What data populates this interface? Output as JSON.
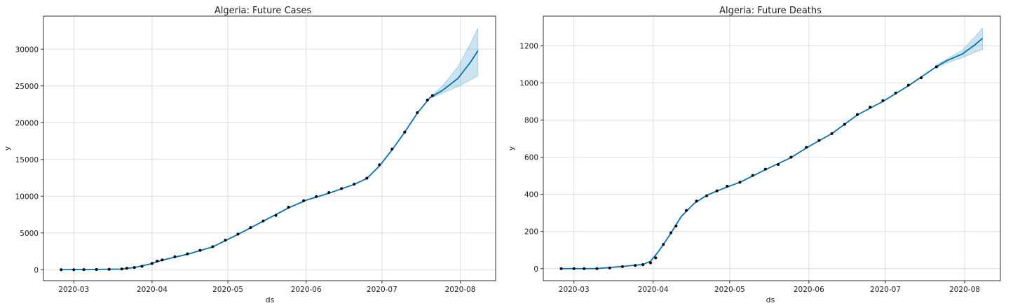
{
  "chart_data": [
    {
      "type": "line",
      "title": "Algeria: Future Cases",
      "xlabel": "ds",
      "ylabel": "y",
      "x_axis_type": "date",
      "xlim": [
        "2020-02-18",
        "2020-08-15"
      ],
      "ylim": [
        -1500,
        34500
      ],
      "x_ticks": [
        "2020-03-01",
        "2020-04-01",
        "2020-05-01",
        "2020-06-01",
        "2020-07-01",
        "2020-08-01"
      ],
      "x_tick_labels": [
        "2020-03",
        "2020-04",
        "2020-05",
        "2020-06",
        "2020-07",
        "2020-08"
      ],
      "y_ticks": [
        0,
        5000,
        10000,
        15000,
        20000,
        25000,
        30000
      ],
      "y_tick_labels": [
        "0",
        "5000",
        "10000",
        "15000",
        "20000",
        "25000",
        "30000"
      ],
      "grid": true,
      "colors": {
        "forecast": "#0072B2",
        "observed": "#000000",
        "interval": "#0072B2"
      },
      "series": [
        {
          "role": "observed",
          "style": "scatter",
          "points": [
            [
              "2020-02-25",
              1
            ],
            [
              "2020-03-01",
              1
            ],
            [
              "2020-03-05",
              17
            ],
            [
              "2020-03-10",
              20
            ],
            [
              "2020-03-15",
              48
            ],
            [
              "2020-03-20",
              90
            ],
            [
              "2020-03-22",
              201
            ],
            [
              "2020-03-25",
              302
            ],
            [
              "2020-03-28",
              454
            ],
            [
              "2020-04-01",
              847
            ],
            [
              "2020-04-03",
              1171
            ],
            [
              "2020-04-05",
              1320
            ],
            [
              "2020-04-10",
              1761
            ],
            [
              "2020-04-15",
              2160
            ],
            [
              "2020-04-20",
              2629
            ],
            [
              "2020-04-25",
              3127
            ],
            [
              "2020-04-30",
              4006
            ],
            [
              "2020-05-05",
              4838
            ],
            [
              "2020-05-10",
              5723
            ],
            [
              "2020-05-15",
              6629
            ],
            [
              "2020-05-20",
              7377
            ],
            [
              "2020-05-25",
              8503
            ],
            [
              "2020-05-31",
              9394
            ],
            [
              "2020-06-05",
              9935
            ],
            [
              "2020-06-10",
              10484
            ],
            [
              "2020-06-15",
              11031
            ],
            [
              "2020-06-20",
              11631
            ],
            [
              "2020-06-25",
              12445
            ],
            [
              "2020-06-30",
              14272
            ],
            [
              "2020-07-05",
              16404
            ],
            [
              "2020-07-10",
              18712
            ],
            [
              "2020-07-15",
              21355
            ],
            [
              "2020-07-19",
              23084
            ],
            [
              "2020-07-21",
              23691
            ]
          ]
        },
        {
          "role": "forecast",
          "style": "line",
          "points": [
            [
              "2020-02-25",
              0
            ],
            [
              "2020-03-20",
              80
            ],
            [
              "2020-03-25",
              300
            ],
            [
              "2020-03-31",
              750
            ],
            [
              "2020-04-05",
              1300
            ],
            [
              "2020-04-15",
              2100
            ],
            [
              "2020-04-25",
              3100
            ],
            [
              "2020-05-05",
              4800
            ],
            [
              "2020-05-15",
              6600
            ],
            [
              "2020-05-25",
              8400
            ],
            [
              "2020-06-01",
              9450
            ],
            [
              "2020-06-10",
              10400
            ],
            [
              "2020-06-20",
              11600
            ],
            [
              "2020-06-25",
              12400
            ],
            [
              "2020-06-30",
              14100
            ],
            [
              "2020-07-05",
              16300
            ],
            [
              "2020-07-10",
              18700
            ],
            [
              "2020-07-15",
              21300
            ],
            [
              "2020-07-20",
              23400
            ],
            [
              "2020-07-25",
              24400
            ],
            [
              "2020-07-31",
              26000
            ],
            [
              "2020-08-05",
              28200
            ],
            [
              "2020-08-08",
              29800
            ]
          ]
        },
        {
          "role": "interval",
          "style": "band",
          "points": [
            [
              "2020-07-20",
              23300,
              23500
            ],
            [
              "2020-07-25",
              24000,
              25000
            ],
            [
              "2020-07-31",
              24900,
              27600
            ],
            [
              "2020-08-05",
              25800,
              30700
            ],
            [
              "2020-08-08",
              26400,
              32900
            ]
          ]
        }
      ]
    },
    {
      "type": "line",
      "title": "Algeria: Future Deaths",
      "xlabel": "ds",
      "ylabel": "y",
      "x_axis_type": "date",
      "xlim": [
        "2020-02-18",
        "2020-08-15"
      ],
      "ylim": [
        -65,
        1360
      ],
      "x_ticks": [
        "2020-03-01",
        "2020-04-01",
        "2020-05-01",
        "2020-06-01",
        "2020-07-01",
        "2020-08-01"
      ],
      "x_tick_labels": [
        "2020-03",
        "2020-04",
        "2020-05",
        "2020-06",
        "2020-07",
        "2020-08"
      ],
      "y_ticks": [
        0,
        200,
        400,
        600,
        800,
        1000,
        1200
      ],
      "y_tick_labels": [
        "0",
        "200",
        "400",
        "600",
        "800",
        "1000",
        "1200"
      ],
      "grid": true,
      "colors": {
        "forecast": "#0072B2",
        "observed": "#000000",
        "interval": "#0072B2"
      },
      "series": [
        {
          "role": "observed",
          "style": "scatter",
          "points": [
            [
              "2020-02-25",
              0
            ],
            [
              "2020-03-01",
              0
            ],
            [
              "2020-03-05",
              0
            ],
            [
              "2020-03-10",
              0
            ],
            [
              "2020-03-15",
              4
            ],
            [
              "2020-03-20",
              11
            ],
            [
              "2020-03-25",
              17
            ],
            [
              "2020-03-28",
              21
            ],
            [
              "2020-03-31",
              31
            ],
            [
              "2020-04-02",
              58
            ],
            [
              "2020-04-05",
              130
            ],
            [
              "2020-04-08",
              193
            ],
            [
              "2020-04-10",
              230
            ],
            [
              "2020-04-14",
              313
            ],
            [
              "2020-04-18",
              364
            ],
            [
              "2020-04-22",
              392
            ],
            [
              "2020-04-26",
              419
            ],
            [
              "2020-04-30",
              444
            ],
            [
              "2020-05-05",
              465
            ],
            [
              "2020-05-10",
              502
            ],
            [
              "2020-05-15",
              536
            ],
            [
              "2020-05-20",
              561
            ],
            [
              "2020-05-25",
              600
            ],
            [
              "2020-05-31",
              653
            ],
            [
              "2020-06-05",
              690
            ],
            [
              "2020-06-10",
              727
            ],
            [
              "2020-06-15",
              777
            ],
            [
              "2020-06-20",
              830
            ],
            [
              "2020-06-25",
              870
            ],
            [
              "2020-06-30",
              905
            ],
            [
              "2020-07-05",
              946
            ],
            [
              "2020-07-10",
              988
            ],
            [
              "2020-07-15",
              1028
            ],
            [
              "2020-07-21",
              1087
            ]
          ]
        },
        {
          "role": "forecast",
          "style": "line",
          "points": [
            [
              "2020-02-25",
              0
            ],
            [
              "2020-03-10",
              0
            ],
            [
              "2020-03-20",
              12
            ],
            [
              "2020-03-28",
              22
            ],
            [
              "2020-03-31",
              40
            ],
            [
              "2020-04-03",
              90
            ],
            [
              "2020-04-07",
              170
            ],
            [
              "2020-04-12",
              280
            ],
            [
              "2020-04-17",
              350
            ],
            [
              "2020-04-22",
              395
            ],
            [
              "2020-04-30",
              440
            ],
            [
              "2020-05-05",
              465
            ],
            [
              "2020-05-15",
              533
            ],
            [
              "2020-05-25",
              598
            ],
            [
              "2020-06-01",
              658
            ],
            [
              "2020-06-10",
              727
            ],
            [
              "2020-06-20",
              828
            ],
            [
              "2020-06-30",
              900
            ],
            [
              "2020-07-10",
              985
            ],
            [
              "2020-07-21",
              1088
            ],
            [
              "2020-07-25",
              1120
            ],
            [
              "2020-07-31",
              1155
            ],
            [
              "2020-08-05",
              1205
            ],
            [
              "2020-08-08",
              1240
            ]
          ]
        },
        {
          "role": "interval",
          "style": "band",
          "points": [
            [
              "2020-07-21",
              1080,
              1096
            ],
            [
              "2020-07-25",
              1108,
              1128
            ],
            [
              "2020-07-31",
              1135,
              1175
            ],
            [
              "2020-08-05",
              1165,
              1248
            ],
            [
              "2020-08-08",
              1180,
              1295
            ]
          ]
        }
      ]
    }
  ]
}
